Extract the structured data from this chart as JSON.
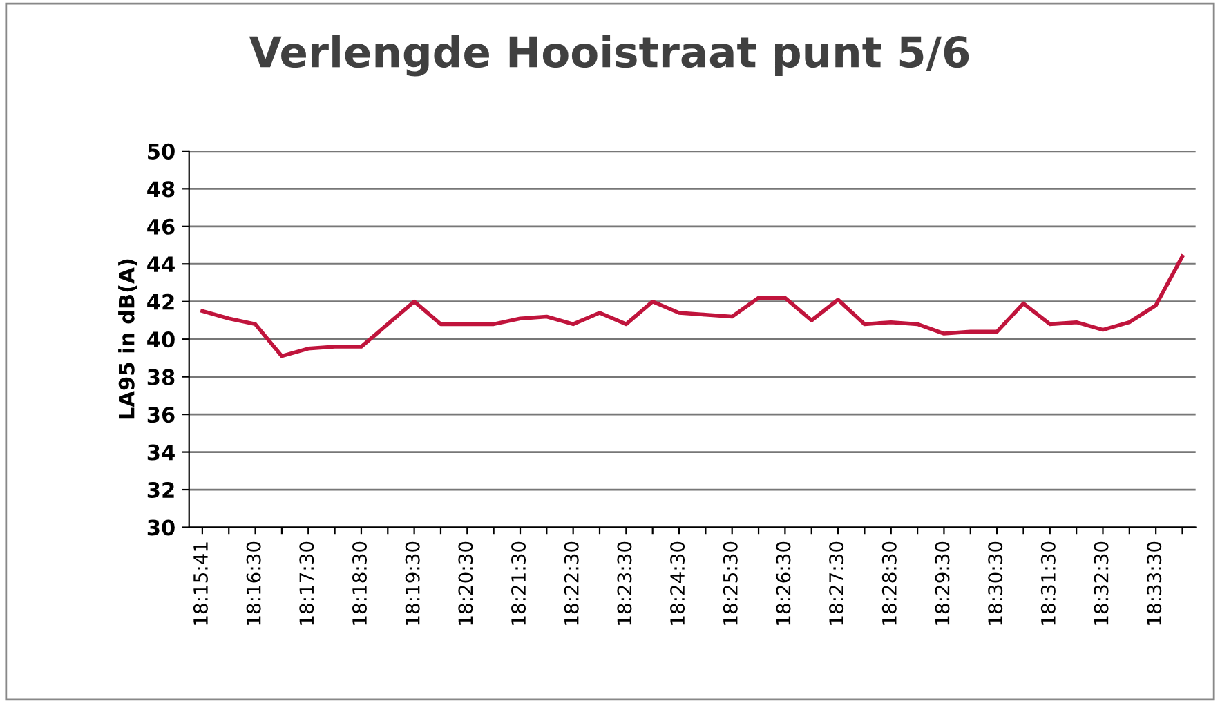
{
  "chart_data": {
    "type": "line",
    "title": "Verlengde Hooistraat punt 5/6",
    "ylabel": "LA95 in dB(A)",
    "categories": [
      "18:15:41",
      null,
      "18:16:30",
      null,
      "18:17:30",
      null,
      "18:18:30",
      null,
      "18:19:30",
      null,
      "18:20:30",
      null,
      "18:21:30",
      null,
      "18:22:30",
      null,
      "18:23:30",
      null,
      "18:24:30",
      null,
      "18:25:30",
      null,
      "18:26:30",
      null,
      "18:27:30",
      null,
      "18:28:30",
      null,
      "18:29:30",
      null,
      "18:30:30",
      null,
      "18:31:30",
      null,
      "18:32:30",
      null,
      "18:33:30",
      null
    ],
    "series": [
      {
        "color": "#c0143c",
        "values": [
          41.5,
          41.1,
          40.8,
          39.1,
          39.5,
          39.6,
          39.6,
          40.8,
          42.0,
          40.8,
          40.8,
          40.8,
          41.1,
          41.2,
          40.8,
          41.4,
          40.8,
          42.0,
          41.4,
          41.3,
          41.2,
          42.2,
          42.2,
          41.0,
          42.1,
          40.8,
          40.9,
          40.8,
          40.3,
          40.4,
          40.4,
          41.9,
          40.8,
          40.9,
          40.5,
          40.9,
          41.8,
          44.4
        ]
      }
    ],
    "ylim": [
      30,
      50
    ],
    "yticks": [
      30,
      32,
      34,
      36,
      38,
      40,
      42,
      44,
      46,
      48,
      50
    ],
    "grid": "y",
    "legend": false,
    "marker": "none",
    "line_style": "solid"
  }
}
